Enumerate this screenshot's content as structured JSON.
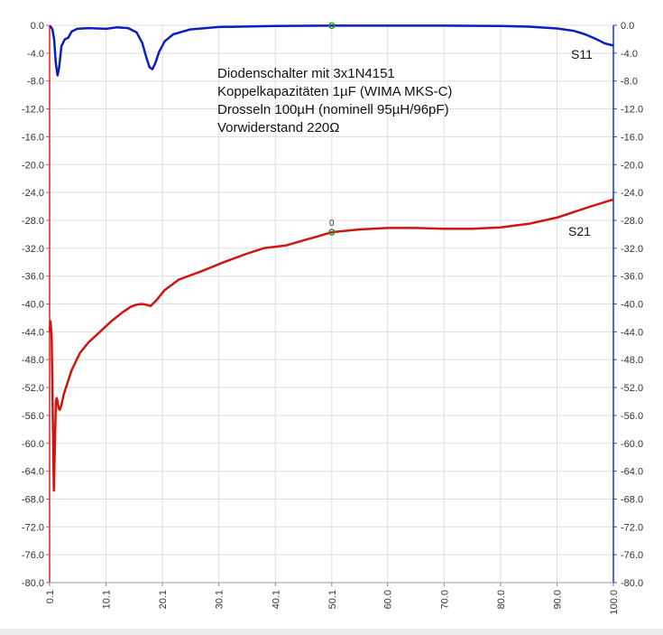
{
  "chart_data": {
    "type": "line",
    "title": "",
    "xlabel": "",
    "ylabel": "",
    "xlim": [
      0.1,
      100.0
    ],
    "ylim": [
      -80.0,
      0.0
    ],
    "x_ticks": [
      "0.1",
      "10.1",
      "20.1",
      "30.1",
      "40.1",
      "50.1",
      "60.0",
      "70.0",
      "80.0",
      "90.0",
      "100.0"
    ],
    "y_ticks": [
      "0.0",
      "-4.0",
      "-8.0",
      "-12.0",
      "-16.0",
      "-20.0",
      "-24.0",
      "-28.0",
      "-32.0",
      "-36.0",
      "-40.0",
      "-44.0",
      "-48.0",
      "-52.0",
      "-56.0",
      "-60.0",
      "-64.0",
      "-68.0",
      "-72.0",
      "-76.0",
      "-80.0"
    ],
    "grid": true,
    "annotation_lines": [
      "Diodenschalter mit 3x1N4151",
      "Koppelkapazitäten 1µF (WIMA MKS-C)",
      "Drosseln 100µH (nominell 95µH/96pF)",
      "Vorwiderstand 220Ω"
    ],
    "marker": {
      "label": "0",
      "x": 50.1
    },
    "series": [
      {
        "name": "S11",
        "color": "#0a1fbf",
        "x": [
          0.1,
          0.3,
          0.6,
          0.9,
          1.2,
          1.5,
          1.8,
          2.2,
          2.8,
          3.4,
          4.0,
          5.0,
          7.0,
          10.1,
          12.0,
          14.0,
          15.5,
          16.5,
          17.2,
          17.8,
          18.3,
          18.8,
          19.5,
          20.5,
          22.0,
          25.0,
          30.0,
          40.0,
          50.1,
          60.0,
          70.0,
          80.0,
          85.0,
          90.0,
          93.0,
          95.0,
          97.0,
          98.5,
          100.0
        ],
        "values": [
          -0.1,
          -0.2,
          -0.6,
          -2.0,
          -5.5,
          -7.2,
          -6.0,
          -3.0,
          -2.0,
          -1.8,
          -0.9,
          -0.5,
          -0.4,
          -0.5,
          -0.3,
          -0.4,
          -1.0,
          -2.5,
          -4.5,
          -6.0,
          -6.3,
          -5.5,
          -3.8,
          -2.3,
          -1.3,
          -0.6,
          -0.25,
          -0.1,
          -0.05,
          -0.05,
          -0.05,
          -0.1,
          -0.2,
          -0.45,
          -0.8,
          -1.3,
          -2.0,
          -2.6,
          -2.9
        ]
      },
      {
        "name": "S21",
        "color": "#d0140e",
        "x": [
          0.1,
          0.25,
          0.45,
          0.65,
          0.85,
          1.05,
          1.2,
          1.35,
          1.5,
          1.7,
          1.9,
          2.2,
          2.6,
          3.0,
          4.0,
          5.5,
          7.0,
          9.0,
          11.0,
          13.0,
          14.5,
          15.5,
          16.5,
          17.2,
          18.0,
          19.0,
          20.5,
          23.0,
          27.0,
          31.0,
          35.0,
          38.0,
          40.0,
          42.0,
          45.0,
          48.0,
          50.1,
          55.0,
          60.0,
          65.0,
          70.0,
          75.0,
          80.0,
          85.0,
          90.0,
          93.0,
          96.0,
          100.0
        ],
        "values": [
          -44.0,
          -42.5,
          -44.5,
          -55.0,
          -66.8,
          -60.0,
          -54.0,
          -53.5,
          -54.0,
          -55.0,
          -55.2,
          -54.5,
          -53.0,
          -52.0,
          -49.5,
          -47.0,
          -45.5,
          -44.0,
          -42.5,
          -41.2,
          -40.4,
          -40.1,
          -40.0,
          -40.1,
          -40.3,
          -39.5,
          -38.0,
          -36.5,
          -35.3,
          -34.0,
          -32.8,
          -32.0,
          -31.8,
          -31.6,
          -30.9,
          -30.2,
          -29.7,
          -29.3,
          -29.1,
          -29.1,
          -29.2,
          -29.2,
          -29.0,
          -28.5,
          -27.6,
          -26.8,
          -26.0,
          -25.0
        ]
      }
    ]
  }
}
